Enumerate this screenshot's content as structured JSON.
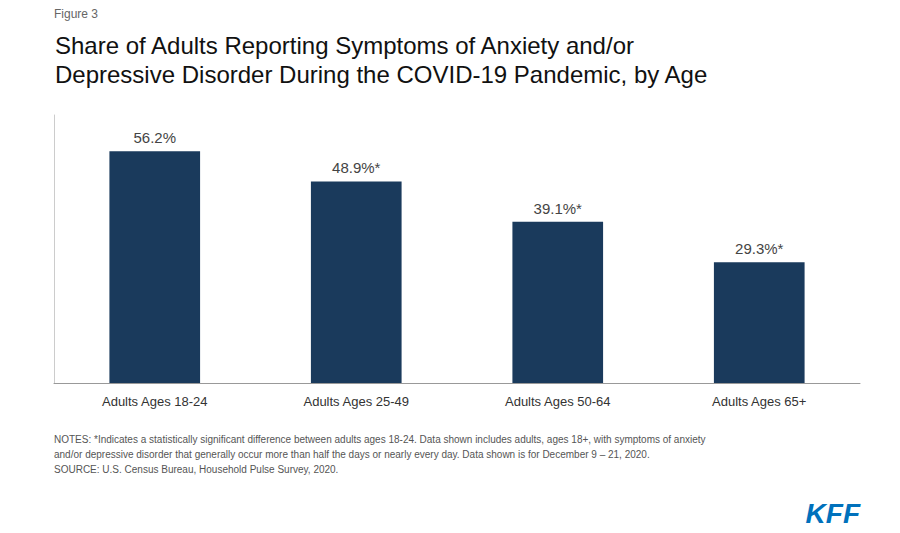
{
  "chart_data": {
    "type": "bar",
    "title": "Share of Adults Reporting Symptoms of Anxiety and/or\nDepressive Disorder During the COVID-19 Pandemic, by Age",
    "categories": [
      "Adults Ages 18-24",
      "Adults Ages 25-49",
      "Adults Ages 50-64",
      "Adults Ages 65+"
    ],
    "values": [
      56.2,
      48.9,
      39.1,
      29.3
    ],
    "value_labels": [
      "56.2%",
      "48.9%*",
      "39.1%*",
      "29.3%*"
    ],
    "data_labels": true,
    "color": "#1a3a5c",
    "ylim": [
      0,
      65
    ],
    "grid": false,
    "tick_labels": "x",
    "annotations": [
      "Figure 3",
      "NOTES: *Indicates a statistically significant difference between adults ages 18-24. Data shown includes adults, ages 18+, with symptoms of anxiety",
      "and/or depressive disorder that generally occur more than half the days or nearly every day. Data shown is for December 9 – 21, 2020.",
      "SOURCE: U.S. Census Bureau, Household Pulse Survey, 2020.",
      "KFF"
    ]
  }
}
